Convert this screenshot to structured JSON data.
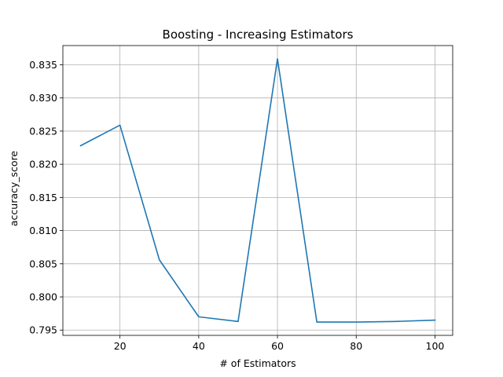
{
  "chart_data": {
    "type": "line",
    "title": "Boosting - Increasing Estimators",
    "xlabel": "# of Estimators",
    "ylabel": "accuracy_score",
    "x": [
      10,
      20,
      30,
      40,
      50,
      60,
      70,
      80,
      90,
      100
    ],
    "series": [
      {
        "values": [
          0.8228,
          0.8259,
          0.8056,
          0.797,
          0.7963,
          0.8359,
          0.7962,
          0.7962,
          0.7963,
          0.7965
        ]
      }
    ],
    "xlim": [
      5.5,
      104.5
    ],
    "ylim": [
      0.7942,
      0.8379
    ],
    "xticks": [
      20,
      40,
      60,
      80,
      100
    ],
    "xtick_labels": [
      "20",
      "40",
      "60",
      "80",
      "100"
    ],
    "yticks": [
      0.795,
      0.8,
      0.805,
      0.81,
      0.815,
      0.82,
      0.825,
      0.83,
      0.835
    ],
    "ytick_labels": [
      "0.795",
      "0.800",
      "0.805",
      "0.810",
      "0.815",
      "0.820",
      "0.825",
      "0.830",
      "0.835"
    ],
    "grid": true,
    "line_color": "#1f77b4",
    "grid_color": "#b0b0b0",
    "axis_color": "#000000"
  }
}
